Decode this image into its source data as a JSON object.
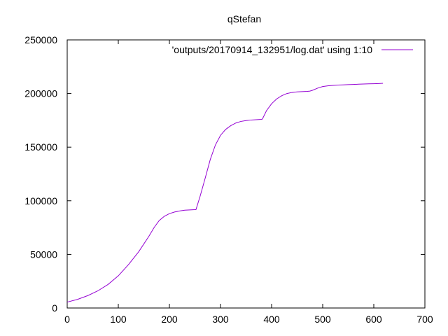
{
  "chart_data": {
    "type": "line",
    "title": "qStefan",
    "xlabel": "",
    "ylabel": "",
    "xlim": [
      0,
      700
    ],
    "ylim": [
      0,
      250000
    ],
    "x_ticks": [
      0,
      100,
      200,
      300,
      400,
      500,
      600,
      700
    ],
    "y_ticks": [
      0,
      50000,
      100000,
      150000,
      200000,
      250000
    ],
    "grid": false,
    "legend": "top-right",
    "series": [
      {
        "name": "'outputs/20170914_132951/log.dat' using 1:10",
        "color": "#9400d3",
        "x": [
          0,
          20,
          40,
          60,
          80,
          100,
          120,
          140,
          160,
          170,
          180,
          190,
          200,
          210,
          220,
          230,
          240,
          250,
          252,
          260,
          270,
          280,
          290,
          300,
          310,
          320,
          330,
          340,
          350,
          360,
          370,
          380,
          382,
          390,
          400,
          410,
          420,
          430,
          440,
          450,
          460,
          470,
          475,
          480,
          490,
          500,
          510,
          520,
          530,
          540,
          550,
          560,
          570,
          580,
          590,
          600,
          610,
          618
        ],
        "y": [
          5500,
          8000,
          11500,
          16000,
          22000,
          30000,
          40500,
          52500,
          67000,
          75000,
          81500,
          85500,
          88000,
          89500,
          90500,
          91200,
          91500,
          91700,
          91800,
          104000,
          121000,
          138500,
          152000,
          161000,
          166500,
          170000,
          172500,
          174000,
          174800,
          175300,
          175600,
          175900,
          176200,
          184000,
          190500,
          195000,
          198000,
          200000,
          201000,
          201500,
          201800,
          202000,
          202300,
          203000,
          205000,
          206500,
          207200,
          207600,
          207900,
          208100,
          208300,
          208500,
          208700,
          208900,
          209000,
          209100,
          209300,
          209500
        ]
      }
    ]
  }
}
